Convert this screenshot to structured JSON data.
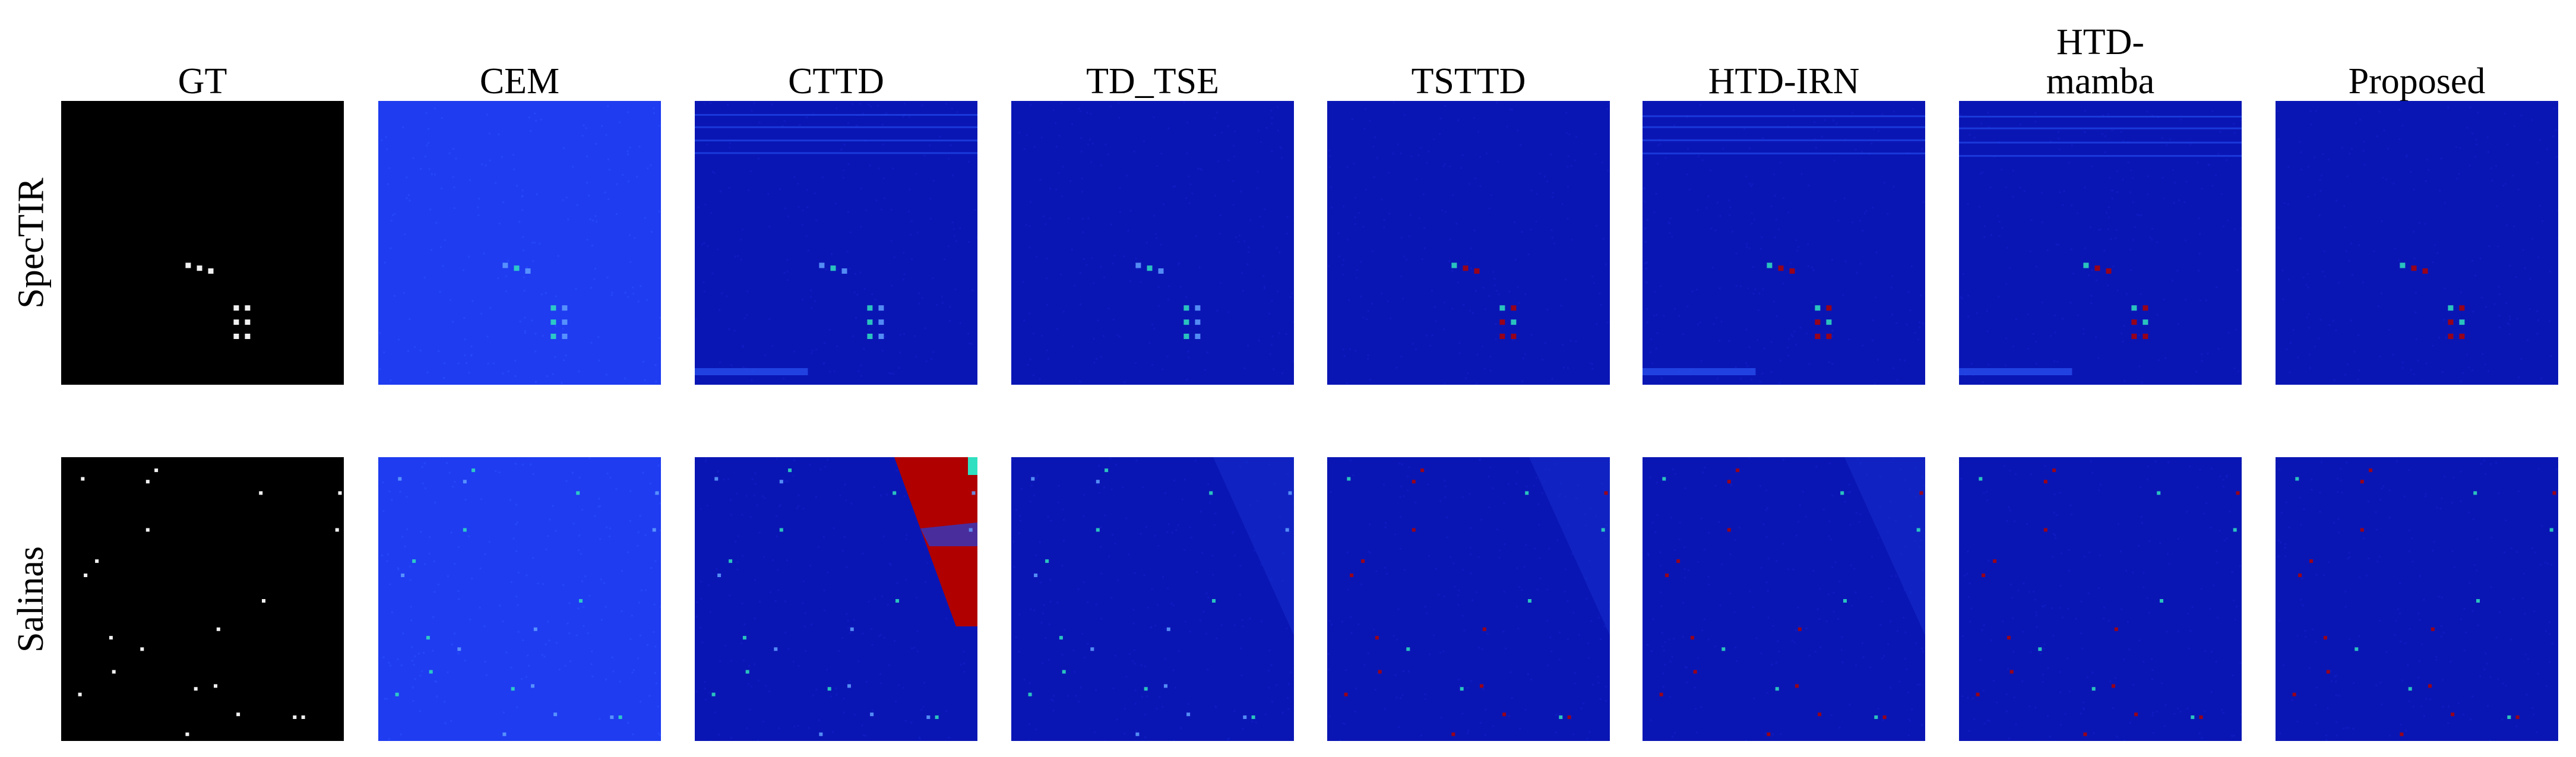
{
  "figure": {
    "columns": [
      {
        "key": "gt",
        "title": "GT"
      },
      {
        "key": "cem",
        "title": "CEM"
      },
      {
        "key": "cttd",
        "title": "CTTD"
      },
      {
        "key": "td_tse",
        "title": "TD_TSE"
      },
      {
        "key": "tsttd",
        "title": "TSTTD"
      },
      {
        "key": "htd_irn",
        "title": "HTD-IRN"
      },
      {
        "key": "htd_mamba",
        "title": "HTD-\nmamba"
      },
      {
        "key": "proposed",
        "title": "Proposed"
      }
    ],
    "rows": [
      {
        "key": "spectir",
        "label": "SpecTIR"
      },
      {
        "key": "salinas",
        "label": "Salinas"
      }
    ],
    "colors": {
      "gt_background": "#000000",
      "cem_background": "#1f3cf0",
      "detector_background": "#0a16b4",
      "low_response": "#0000a0",
      "high_response": "#b00000",
      "mid_response": "#30e0c0",
      "target_white": "#f0f0f0"
    }
  }
}
